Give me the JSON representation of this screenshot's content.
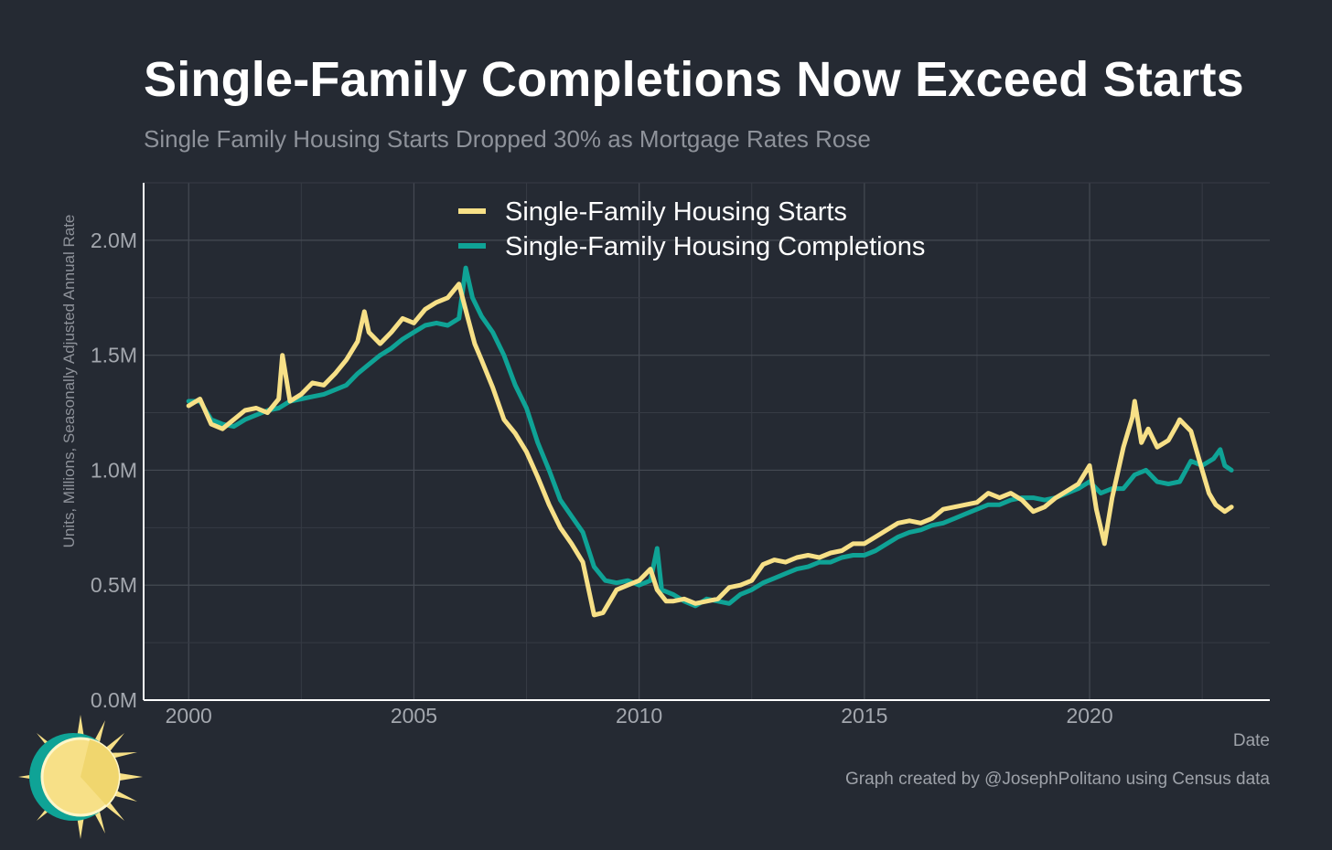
{
  "title": "Single-Family Completions Now Exceed Starts",
  "subtitle": "Single Family Housing Starts Dropped 30% as Mortgage Rates Rose",
  "credit": "Graph created by @JosephPolitano using Census data",
  "colors": {
    "background": "#252a33",
    "starts": "#f7e087",
    "completions": "#0fa396"
  },
  "chart_data": {
    "type": "line",
    "xlabel": "Date",
    "ylabel": "Units, Millions, Seasonally Adjusted Annual Rate",
    "xlim": [
      1999.0,
      2024.0
    ],
    "ylim": [
      0,
      2.25
    ],
    "xticks": [
      2000,
      2005,
      2010,
      2015,
      2020
    ],
    "xtick_labels": [
      "2000",
      "2005",
      "2010",
      "2015",
      "2020"
    ],
    "yticks": [
      0,
      0.5,
      1.0,
      1.5,
      2.0
    ],
    "ytick_labels": [
      "0.0M",
      "0.5M",
      "1.0M",
      "1.5M",
      "2.0M"
    ],
    "grid": true,
    "legend_position": "top-center",
    "series": [
      {
        "name": "Single-Family Housing Starts",
        "color": "#f7e087",
        "points": [
          [
            2000.0,
            1.28
          ],
          [
            2000.25,
            1.31
          ],
          [
            2000.5,
            1.2
          ],
          [
            2000.75,
            1.18
          ],
          [
            2001.0,
            1.22
          ],
          [
            2001.25,
            1.26
          ],
          [
            2001.5,
            1.27
          ],
          [
            2001.75,
            1.25
          ],
          [
            2002.0,
            1.31
          ],
          [
            2002.08,
            1.5
          ],
          [
            2002.25,
            1.3
          ],
          [
            2002.5,
            1.33
          ],
          [
            2002.75,
            1.38
          ],
          [
            2003.0,
            1.37
          ],
          [
            2003.25,
            1.42
          ],
          [
            2003.5,
            1.48
          ],
          [
            2003.75,
            1.56
          ],
          [
            2003.9,
            1.69
          ],
          [
            2004.0,
            1.6
          ],
          [
            2004.25,
            1.55
          ],
          [
            2004.5,
            1.6
          ],
          [
            2004.75,
            1.66
          ],
          [
            2005.0,
            1.64
          ],
          [
            2005.25,
            1.7
          ],
          [
            2005.5,
            1.73
          ],
          [
            2005.75,
            1.75
          ],
          [
            2006.0,
            1.81
          ],
          [
            2006.2,
            1.66
          ],
          [
            2006.35,
            1.55
          ],
          [
            2006.5,
            1.48
          ],
          [
            2006.75,
            1.36
          ],
          [
            2007.0,
            1.22
          ],
          [
            2007.25,
            1.16
          ],
          [
            2007.5,
            1.08
          ],
          [
            2007.75,
            0.97
          ],
          [
            2008.0,
            0.85
          ],
          [
            2008.25,
            0.75
          ],
          [
            2008.5,
            0.68
          ],
          [
            2008.75,
            0.6
          ],
          [
            2009.0,
            0.37
          ],
          [
            2009.2,
            0.38
          ],
          [
            2009.5,
            0.48
          ],
          [
            2009.75,
            0.5
          ],
          [
            2010.0,
            0.52
          ],
          [
            2010.25,
            0.57
          ],
          [
            2010.4,
            0.48
          ],
          [
            2010.6,
            0.43
          ],
          [
            2010.75,
            0.43
          ],
          [
            2011.0,
            0.44
          ],
          [
            2011.25,
            0.42
          ],
          [
            2011.5,
            0.43
          ],
          [
            2011.75,
            0.44
          ],
          [
            2012.0,
            0.49
          ],
          [
            2012.25,
            0.5
          ],
          [
            2012.5,
            0.52
          ],
          [
            2012.75,
            0.59
          ],
          [
            2013.0,
            0.61
          ],
          [
            2013.25,
            0.6
          ],
          [
            2013.5,
            0.62
          ],
          [
            2013.75,
            0.63
          ],
          [
            2014.0,
            0.62
          ],
          [
            2014.25,
            0.64
          ],
          [
            2014.5,
            0.65
          ],
          [
            2014.75,
            0.68
          ],
          [
            2015.0,
            0.68
          ],
          [
            2015.25,
            0.71
          ],
          [
            2015.5,
            0.74
          ],
          [
            2015.75,
            0.77
          ],
          [
            2016.0,
            0.78
          ],
          [
            2016.25,
            0.77
          ],
          [
            2016.5,
            0.79
          ],
          [
            2016.75,
            0.83
          ],
          [
            2017.0,
            0.84
          ],
          [
            2017.25,
            0.85
          ],
          [
            2017.5,
            0.86
          ],
          [
            2017.75,
            0.9
          ],
          [
            2018.0,
            0.88
          ],
          [
            2018.25,
            0.9
          ],
          [
            2018.5,
            0.87
          ],
          [
            2018.75,
            0.82
          ],
          [
            2019.0,
            0.84
          ],
          [
            2019.25,
            0.88
          ],
          [
            2019.5,
            0.91
          ],
          [
            2019.75,
            0.94
          ],
          [
            2020.0,
            1.02
          ],
          [
            2020.15,
            0.83
          ],
          [
            2020.33,
            0.68
          ],
          [
            2020.5,
            0.88
          ],
          [
            2020.75,
            1.1
          ],
          [
            2020.95,
            1.23
          ],
          [
            2021.0,
            1.3
          ],
          [
            2021.15,
            1.12
          ],
          [
            2021.3,
            1.18
          ],
          [
            2021.5,
            1.1
          ],
          [
            2021.75,
            1.13
          ],
          [
            2021.95,
            1.2
          ],
          [
            2022.0,
            1.22
          ],
          [
            2022.25,
            1.17
          ],
          [
            2022.5,
            1.0
          ],
          [
            2022.65,
            0.9
          ],
          [
            2022.8,
            0.85
          ],
          [
            2023.0,
            0.82
          ],
          [
            2023.15,
            0.84
          ]
        ]
      },
      {
        "name": "Single-Family Housing Completions",
        "color": "#0fa396",
        "points": [
          [
            2000.0,
            1.3
          ],
          [
            2000.25,
            1.3
          ],
          [
            2000.5,
            1.22
          ],
          [
            2000.75,
            1.2
          ],
          [
            2001.0,
            1.19
          ],
          [
            2001.25,
            1.22
          ],
          [
            2001.5,
            1.24
          ],
          [
            2001.75,
            1.26
          ],
          [
            2002.0,
            1.27
          ],
          [
            2002.25,
            1.3
          ],
          [
            2002.5,
            1.31
          ],
          [
            2002.75,
            1.32
          ],
          [
            2003.0,
            1.33
          ],
          [
            2003.25,
            1.35
          ],
          [
            2003.5,
            1.37
          ],
          [
            2003.75,
            1.42
          ],
          [
            2004.0,
            1.46
          ],
          [
            2004.25,
            1.5
          ],
          [
            2004.5,
            1.53
          ],
          [
            2004.75,
            1.57
          ],
          [
            2005.0,
            1.6
          ],
          [
            2005.25,
            1.63
          ],
          [
            2005.5,
            1.64
          ],
          [
            2005.75,
            1.63
          ],
          [
            2006.0,
            1.66
          ],
          [
            2006.15,
            1.88
          ],
          [
            2006.3,
            1.75
          ],
          [
            2006.5,
            1.67
          ],
          [
            2006.75,
            1.6
          ],
          [
            2007.0,
            1.5
          ],
          [
            2007.25,
            1.37
          ],
          [
            2007.5,
            1.27
          ],
          [
            2007.75,
            1.12
          ],
          [
            2008.0,
            1.0
          ],
          [
            2008.25,
            0.87
          ],
          [
            2008.5,
            0.8
          ],
          [
            2008.75,
            0.73
          ],
          [
            2009.0,
            0.58
          ],
          [
            2009.25,
            0.52
          ],
          [
            2009.5,
            0.51
          ],
          [
            2009.75,
            0.52
          ],
          [
            2010.0,
            0.5
          ],
          [
            2010.25,
            0.52
          ],
          [
            2010.4,
            0.66
          ],
          [
            2010.5,
            0.48
          ],
          [
            2010.75,
            0.46
          ],
          [
            2011.0,
            0.43
          ],
          [
            2011.25,
            0.41
          ],
          [
            2011.5,
            0.44
          ],
          [
            2011.75,
            0.43
          ],
          [
            2012.0,
            0.42
          ],
          [
            2012.25,
            0.46
          ],
          [
            2012.5,
            0.48
          ],
          [
            2012.75,
            0.51
          ],
          [
            2013.0,
            0.53
          ],
          [
            2013.25,
            0.55
          ],
          [
            2013.5,
            0.57
          ],
          [
            2013.75,
            0.58
          ],
          [
            2014.0,
            0.6
          ],
          [
            2014.25,
            0.6
          ],
          [
            2014.5,
            0.62
          ],
          [
            2014.75,
            0.63
          ],
          [
            2015.0,
            0.63
          ],
          [
            2015.25,
            0.65
          ],
          [
            2015.5,
            0.68
          ],
          [
            2015.75,
            0.71
          ],
          [
            2016.0,
            0.73
          ],
          [
            2016.25,
            0.74
          ],
          [
            2016.5,
            0.76
          ],
          [
            2016.75,
            0.77
          ],
          [
            2017.0,
            0.79
          ],
          [
            2017.25,
            0.81
          ],
          [
            2017.5,
            0.83
          ],
          [
            2017.75,
            0.85
          ],
          [
            2018.0,
            0.85
          ],
          [
            2018.25,
            0.87
          ],
          [
            2018.5,
            0.88
          ],
          [
            2018.75,
            0.88
          ],
          [
            2019.0,
            0.87
          ],
          [
            2019.25,
            0.88
          ],
          [
            2019.5,
            0.9
          ],
          [
            2019.75,
            0.92
          ],
          [
            2020.0,
            0.95
          ],
          [
            2020.25,
            0.9
          ],
          [
            2020.5,
            0.92
          ],
          [
            2020.75,
            0.92
          ],
          [
            2021.0,
            0.98
          ],
          [
            2021.25,
            1.0
          ],
          [
            2021.5,
            0.95
          ],
          [
            2021.75,
            0.94
          ],
          [
            2022.0,
            0.95
          ],
          [
            2022.25,
            1.04
          ],
          [
            2022.5,
            1.02
          ],
          [
            2022.75,
            1.05
          ],
          [
            2022.9,
            1.09
          ],
          [
            2023.0,
            1.02
          ],
          [
            2023.15,
            1.0
          ]
        ]
      }
    ]
  }
}
